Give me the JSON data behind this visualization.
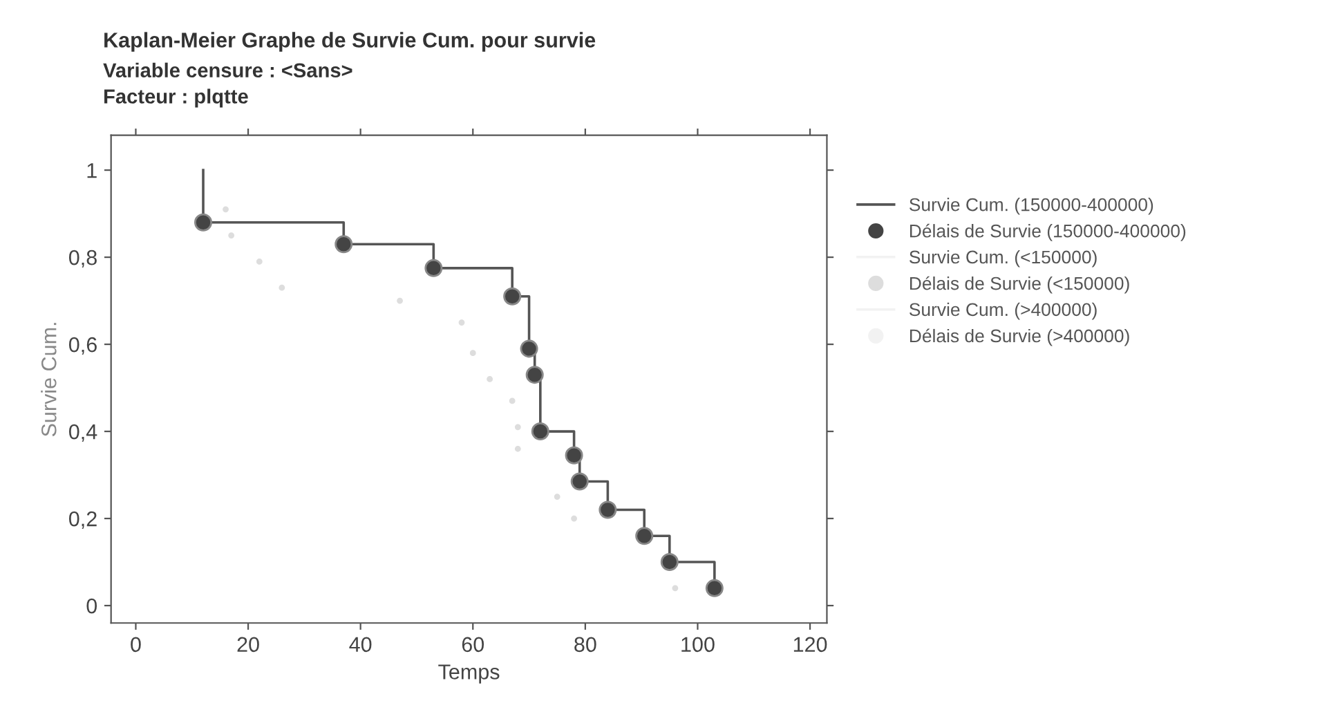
{
  "chart_data": {
    "type": "step",
    "title": "Kaplan-Meier Graphe de Survie Cum. pour survie",
    "subtitle": "Variable censure : <Sans>\nFacteur : plqtte",
    "xlabel": "Temps",
    "ylabel": "Survie Cum.",
    "xlim": [
      -4.4,
      123
    ],
    "ylim": [
      -0.04,
      1.08
    ],
    "xticks": [
      0,
      20,
      40,
      60,
      80,
      100,
      120
    ],
    "yticks": [
      {
        "value": 0,
        "label": "0"
      },
      {
        "value": 0.2,
        "label": "0,2"
      },
      {
        "value": 0.4,
        "label": "0,4"
      },
      {
        "value": 0.6,
        "label": "0,6"
      },
      {
        "value": 0.8,
        "label": "0,8"
      },
      {
        "value": 1,
        "label": "1"
      }
    ],
    "grid": false,
    "legend": "right",
    "series": [
      {
        "name": "Survie Cum. (150000-400000)",
        "color": "#555555",
        "x": [
          12,
          12,
          37,
          53,
          67,
          70,
          71,
          72,
          78,
          79,
          84,
          90.5,
          95,
          103
        ],
        "values": [
          1,
          0.88,
          0.83,
          0.775,
          0.71,
          0.59,
          0.53,
          0.4,
          0.345,
          0.285,
          0.22,
          0.16,
          0.1,
          0.04
        ]
      },
      {
        "name": "Délais de Survie (150000-400000)",
        "type": "scatter",
        "marker": "circle",
        "color": "#444444",
        "x": [
          12,
          37,
          53,
          67,
          70,
          71,
          72,
          78,
          79,
          84,
          90.5,
          95,
          103
        ],
        "values": [
          0.88,
          0.83,
          0.775,
          0.71,
          0.59,
          0.53,
          0.4,
          0.345,
          0.285,
          0.22,
          0.16,
          0.1,
          0.04
        ]
      },
      {
        "name": "Survie Cum. (<150000)",
        "type": "step",
        "color": "#f2f2f2"
      },
      {
        "name": "Délais de Survie (<150000)",
        "type": "scatter",
        "marker": "circle",
        "color": "#dddddd",
        "x": [
          16,
          17,
          22,
          26,
          47,
          58,
          60,
          63,
          67,
          68,
          68,
          75,
          78,
          96
        ],
        "values": [
          0.91,
          0.85,
          0.79,
          0.73,
          0.7,
          0.65,
          0.58,
          0.52,
          0.47,
          0.41,
          0.36,
          0.25,
          0.2,
          0.04
        ]
      },
      {
        "name": "Survie Cum. (>400000)",
        "type": "step",
        "color": "#f2f2f2"
      },
      {
        "name": "Délais de Survie (>400000)",
        "type": "scatter",
        "marker": "circle",
        "color": "#f2f2f2"
      }
    ]
  }
}
